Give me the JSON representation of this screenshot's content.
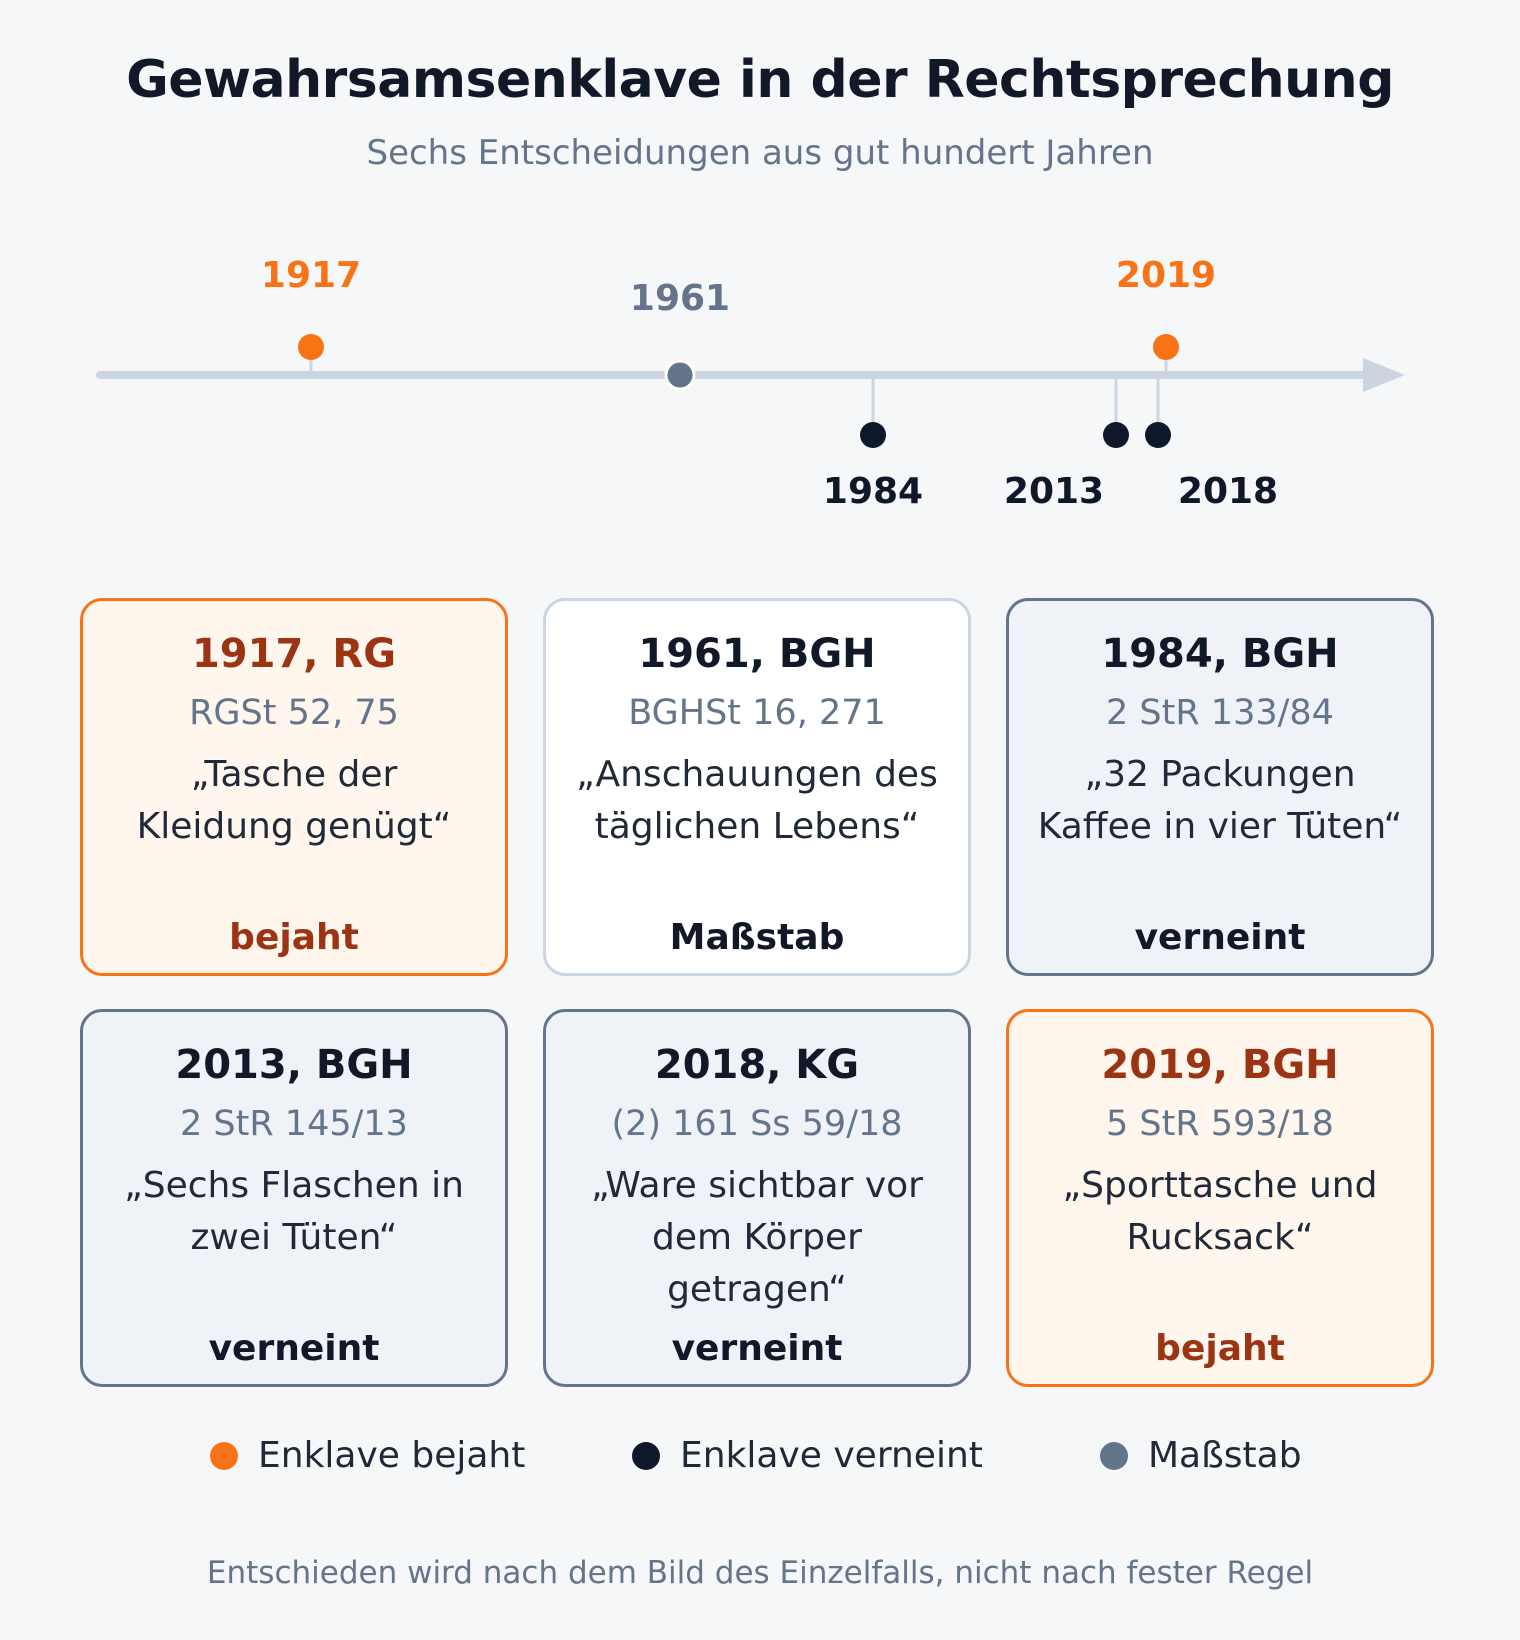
{
  "header": {
    "title": "Gewahrsamsenklave in der Rechtsprechung",
    "subtitle": "Sechs Entscheidungen aus gut hundert Jahren"
  },
  "timeline": {
    "events": [
      {
        "year": "1917",
        "category": "bejaht"
      },
      {
        "year": "1961",
        "category": "massstab"
      },
      {
        "year": "1984",
        "category": "verneint"
      },
      {
        "year": "2013",
        "category": "verneint"
      },
      {
        "year": "2018",
        "category": "verneint"
      },
      {
        "year": "2019",
        "category": "bejaht"
      }
    ]
  },
  "cards": [
    {
      "title": "1917, RG",
      "ref": "RGSt 52, 75",
      "quote": "„Tasche der Kleidung genügt“",
      "verdict": "bejaht",
      "category": "bejaht"
    },
    {
      "title": "1961, BGH",
      "ref": "BGHSt 16, 271",
      "quote": "„Anschauungen des täglichen Lebens“",
      "verdict": "Maßstab",
      "category": "massstab"
    },
    {
      "title": "1984, BGH",
      "ref": "2 StR 133/84",
      "quote": "„32 Packungen Kaffee in vier Tüten“",
      "verdict": "verneint",
      "category": "verneint"
    },
    {
      "title": "2013, BGH",
      "ref": "2 StR 145/13",
      "quote": "„Sechs Flaschen in zwei Tüten“",
      "verdict": "verneint",
      "category": "verneint"
    },
    {
      "title": "2018, KG",
      "ref": "(2) 161 Ss 59/18",
      "quote": "„Ware sichtbar vor dem Körper getragen“",
      "verdict": "verneint",
      "category": "verneint"
    },
    {
      "title": "2019, BGH",
      "ref": "5 StR 593/18",
      "quote": "„Sporttasche und Rucksack“",
      "verdict": "bejaht",
      "category": "bejaht"
    }
  ],
  "legend": [
    {
      "label": "Enklave bejaht",
      "category": "bejaht"
    },
    {
      "label": "Enklave verneint",
      "category": "verneint"
    },
    {
      "label": "Maßstab",
      "category": "massstab"
    }
  ],
  "colors": {
    "bejaht": "#f97316",
    "verneint": "#0f172a",
    "massstab": "#64748b",
    "axis": "#cbd5e1"
  },
  "footer": "Entschieden wird nach dem Bild des Einzelfalls, nicht nach fester Regel"
}
